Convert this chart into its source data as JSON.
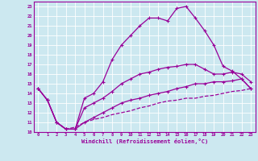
{
  "xlabel": "Windchill (Refroidissement éolien,°C)",
  "bg_color": "#cce8f0",
  "line_color": "#990099",
  "xlim": [
    -0.5,
    23.5
  ],
  "ylim": [
    10,
    23.5
  ],
  "xticks": [
    0,
    1,
    2,
    3,
    4,
    5,
    6,
    7,
    8,
    9,
    10,
    11,
    12,
    13,
    14,
    15,
    16,
    17,
    18,
    19,
    20,
    21,
    22,
    23
  ],
  "yticks": [
    10,
    11,
    12,
    13,
    14,
    15,
    16,
    17,
    18,
    19,
    20,
    21,
    22,
    23
  ],
  "curve1_x": [
    0,
    1,
    2,
    3,
    4,
    5,
    6,
    7,
    8,
    9,
    10,
    11,
    12,
    13,
    14,
    15,
    16,
    17,
    18,
    19,
    20,
    21,
    22,
    23
  ],
  "curve1_y": [
    14.5,
    13.3,
    11.0,
    10.3,
    10.3,
    13.5,
    14.0,
    15.2,
    17.5,
    19.0,
    20.0,
    21.0,
    21.8,
    21.8,
    21.5,
    22.8,
    23.0,
    21.8,
    20.5,
    19.0,
    16.8,
    16.3,
    15.5,
    14.5
  ],
  "curve2_x": [
    0,
    1,
    2,
    3,
    4,
    5,
    6,
    7,
    8,
    9,
    10,
    11,
    12,
    13,
    14,
    15,
    16,
    17,
    18,
    19,
    20,
    21,
    22,
    23
  ],
  "curve2_y": [
    14.5,
    13.3,
    11.0,
    10.3,
    10.3,
    12.5,
    13.0,
    13.5,
    14.2,
    15.0,
    15.5,
    16.0,
    16.2,
    16.5,
    16.7,
    16.8,
    17.0,
    17.0,
    16.5,
    16.0,
    16.0,
    16.2,
    16.0,
    15.2
  ],
  "curve3_x": [
    0,
    1,
    2,
    3,
    4,
    5,
    6,
    7,
    8,
    9,
    10,
    11,
    12,
    13,
    14,
    15,
    16,
    17,
    18,
    19,
    20,
    21,
    22,
    23
  ],
  "curve3_y": [
    14.5,
    13.3,
    11.0,
    10.3,
    10.3,
    11.0,
    11.5,
    12.0,
    12.5,
    13.0,
    13.3,
    13.5,
    13.8,
    14.0,
    14.2,
    14.5,
    14.7,
    15.0,
    15.0,
    15.2,
    15.2,
    15.3,
    15.5,
    14.5
  ],
  "curve4_x": [
    2,
    3,
    4,
    5,
    6,
    7,
    8,
    9,
    10,
    11,
    12,
    13,
    14,
    15,
    16,
    17,
    18,
    19,
    20,
    21,
    22,
    23
  ],
  "curve4_y": [
    11.0,
    10.3,
    10.5,
    11.0,
    11.3,
    11.5,
    11.8,
    12.0,
    12.2,
    12.5,
    12.7,
    13.0,
    13.2,
    13.3,
    13.5,
    13.5,
    13.7,
    13.8,
    14.0,
    14.2,
    14.3,
    14.5
  ]
}
